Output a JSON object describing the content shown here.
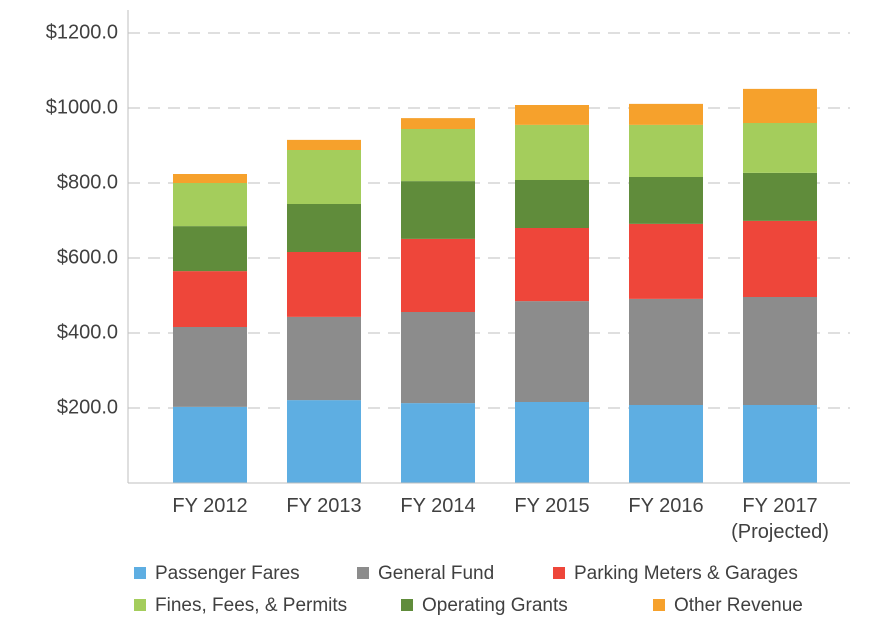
{
  "chart_data": {
    "type": "stacked_bar",
    "categories": [
      "FY 2012",
      "FY 2013",
      "FY 2014",
      "FY 2015",
      "FY 2016",
      "FY 2017\n(Projected)"
    ],
    "series": [
      {
        "name": "Passenger Fares",
        "color": "#5eaee2",
        "values": [
          203,
          221,
          213,
          216,
          208,
          208
        ]
      },
      {
        "name": "General Fund",
        "color": "#8c8c8c",
        "values": [
          213,
          222,
          243,
          269,
          283,
          288
        ]
      },
      {
        "name": "Parking Meters & Garages",
        "color": "#ee463a",
        "values": [
          149,
          173,
          195,
          195,
          200,
          203
        ]
      },
      {
        "name": "Operating Grants",
        "color": "#608c3b",
        "values": [
          120,
          128,
          154,
          128,
          125,
          128
        ]
      },
      {
        "name": "Fines, Fees, & Permits",
        "color": "#a4cd5c",
        "values": [
          115,
          144,
          139,
          147,
          139,
          133
        ]
      },
      {
        "name": "Other Revenue",
        "color": "#f6a12c",
        "values": [
          24,
          27,
          29,
          53,
          56,
          91
        ]
      }
    ],
    "ylim": [
      0,
      1200
    ],
    "yticks": [
      {
        "value": 200,
        "label": "$200.0"
      },
      {
        "value": 400,
        "label": "$400.0"
      },
      {
        "value": 600,
        "label": "$600.0"
      },
      {
        "value": 800,
        "label": "$800.0"
      },
      {
        "value": 1000,
        "label": "$1000.0"
      },
      {
        "value": 1200,
        "label": "$1200.0"
      }
    ],
    "grid": true
  }
}
